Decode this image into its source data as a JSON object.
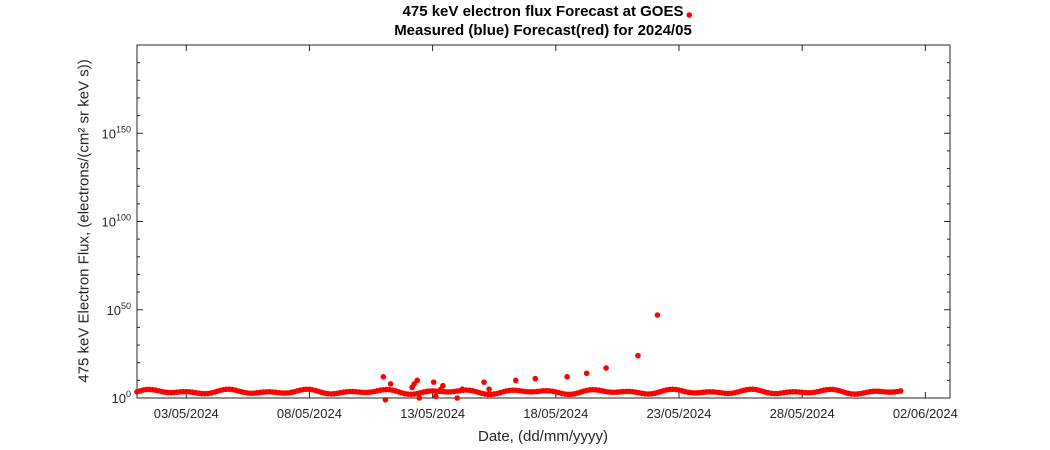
{
  "chart_data": {
    "type": "scatter",
    "title": "475 keV electron flux Forecast at GOES",
    "subtitle": "Measured (blue) Forecast(red) for 2024/05",
    "xlabel": "Date, (dd/mm/yyyy)",
    "ylabel": "475 keV Electron Flux, (electrons/(cm² sr keV s))",
    "yscale": "log",
    "ylim_exponent": [
      0,
      200
    ],
    "xlim": [
      "2024-05-01",
      "2024-06-03"
    ],
    "x_ticks": [
      "03/05/2024",
      "08/05/2024",
      "13/05/2024",
      "18/05/2024",
      "23/05/2024",
      "28/05/2024",
      "02/06/2024"
    ],
    "y_ticks": [
      {
        "base": "10",
        "exponent": "0"
      },
      {
        "base": "10",
        "exponent": "50"
      },
      {
        "base": "10",
        "exponent": "100"
      },
      {
        "base": "10",
        "exponent": "150"
      }
    ],
    "grid": false,
    "series": [
      {
        "name": "Forecast",
        "color": "#ff0000",
        "baseline": {
          "x_start": "2024-05-01",
          "x_end": "2024-06-01",
          "log10_flux_range": [
            2,
            5
          ]
        },
        "points": [
          {
            "x": "2024-05-11",
            "log10_flux": 12
          },
          {
            "x": "2024-05-11",
            "log10_flux": 8
          },
          {
            "x": "2024-05-11",
            "log10_flux": -1
          },
          {
            "x": "2024-05-12",
            "log10_flux": 10
          },
          {
            "x": "2024-05-12",
            "log10_flux": 6
          },
          {
            "x": "2024-05-12",
            "log10_flux": 0
          },
          {
            "x": "2024-05-12",
            "log10_flux": 8
          },
          {
            "x": "2024-05-13",
            "log10_flux": 9
          },
          {
            "x": "2024-05-13",
            "log10_flux": 5
          },
          {
            "x": "2024-05-13",
            "log10_flux": 1
          },
          {
            "x": "2024-05-13",
            "log10_flux": 7
          },
          {
            "x": "2024-05-14",
            "log10_flux": 5
          },
          {
            "x": "2024-05-14",
            "log10_flux": 0
          },
          {
            "x": "2024-05-15",
            "log10_flux": 5
          },
          {
            "x": "2024-05-15",
            "log10_flux": 9
          },
          {
            "x": "2024-05-16",
            "log10_flux": 10
          },
          {
            "x": "2024-05-17",
            "log10_flux": 11
          },
          {
            "x": "2024-05-18",
            "log10_flux": 12
          },
          {
            "x": "2024-05-19",
            "log10_flux": 14
          },
          {
            "x": "2024-05-20",
            "log10_flux": 17
          },
          {
            "x": "2024-05-21",
            "log10_flux": 24
          },
          {
            "x": "2024-05-22",
            "log10_flux": 47
          },
          {
            "x": "2024-05-23",
            "log10_flux": 217
          }
        ]
      }
    ]
  }
}
